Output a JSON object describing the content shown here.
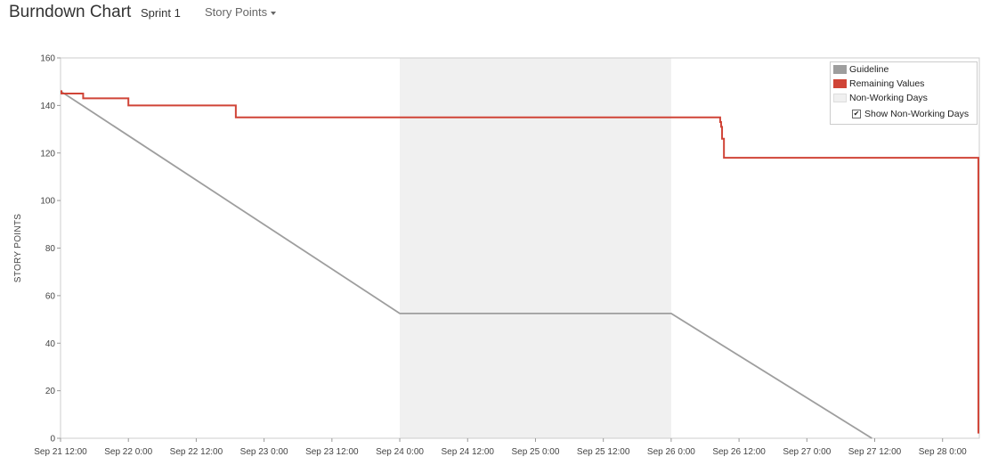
{
  "header": {
    "title": "Burndown Chart",
    "sprint": "Sprint 1",
    "units_label": "Story Points"
  },
  "legend": {
    "guideline": "Guideline",
    "remaining": "Remaining Values",
    "non_working": "Non-Working Days",
    "show_non_working": "Show Non-Working Days",
    "show_non_working_checked": true
  },
  "chart_data": {
    "type": "line",
    "title": "",
    "xlabel": "",
    "ylabel": "STORY POINTS",
    "ylim": [
      0,
      160
    ],
    "xlim": [
      "2023-09-21 12:00",
      "2023-09-28 06:30"
    ],
    "y_ticks": [
      0,
      20,
      40,
      60,
      80,
      100,
      120,
      140,
      160
    ],
    "x_ticks": [
      {
        "t": "2023-09-21 12:00",
        "label": "Sep 21 12:00"
      },
      {
        "t": "2023-09-22 00:00",
        "label": "Sep 22 0:00"
      },
      {
        "t": "2023-09-22 12:00",
        "label": "Sep 22 12:00"
      },
      {
        "t": "2023-09-23 00:00",
        "label": "Sep 23 0:00"
      },
      {
        "t": "2023-09-23 12:00",
        "label": "Sep 23 12:00"
      },
      {
        "t": "2023-09-24 00:00",
        "label": "Sep 24 0:00"
      },
      {
        "t": "2023-09-24 12:00",
        "label": "Sep 24 12:00"
      },
      {
        "t": "2023-09-25 00:00",
        "label": "Sep 25 0:00"
      },
      {
        "t": "2023-09-25 12:00",
        "label": "Sep 25 12:00"
      },
      {
        "t": "2023-09-26 00:00",
        "label": "Sep 26 0:00"
      },
      {
        "t": "2023-09-26 12:00",
        "label": "Sep 26 12:00"
      },
      {
        "t": "2023-09-27 00:00",
        "label": "Sep 27 0:00"
      },
      {
        "t": "2023-09-27 12:00",
        "label": "Sep 27 12:00"
      },
      {
        "t": "2023-09-28 00:00",
        "label": "Sep 28 0:00"
      }
    ],
    "non_working_days": [
      {
        "start": "2023-09-24 00:00",
        "end": "2023-09-26 00:00"
      }
    ],
    "grid": false,
    "legend_position": "top-right",
    "series": [
      {
        "name": "Guideline",
        "color": "#9e9e9e",
        "step": false,
        "points": [
          [
            "2023-09-21 12:00",
            146
          ],
          [
            "2023-09-24 00:00",
            52.5
          ],
          [
            "2023-09-26 00:00",
            52.5
          ],
          [
            "2023-09-27 11:30",
            0
          ]
        ]
      },
      {
        "name": "Remaining Values",
        "color": "#d04437",
        "step": true,
        "points": [
          [
            "2023-09-21 12:00",
            146
          ],
          [
            "2023-09-21 12:10",
            145
          ],
          [
            "2023-09-21 16:00",
            143
          ],
          [
            "2023-09-22 00:00",
            140
          ],
          [
            "2023-09-22 19:00",
            135
          ],
          [
            "2023-09-26 08:40",
            133
          ],
          [
            "2023-09-26 08:50",
            131
          ],
          [
            "2023-09-26 09:00",
            126
          ],
          [
            "2023-09-26 09:20",
            118
          ],
          [
            "2023-09-28 06:20",
            2
          ]
        ]
      }
    ],
    "colors": {
      "guideline": "#9e9e9e",
      "remaining": "#d04437",
      "non_working": "#f0f0f0"
    }
  }
}
